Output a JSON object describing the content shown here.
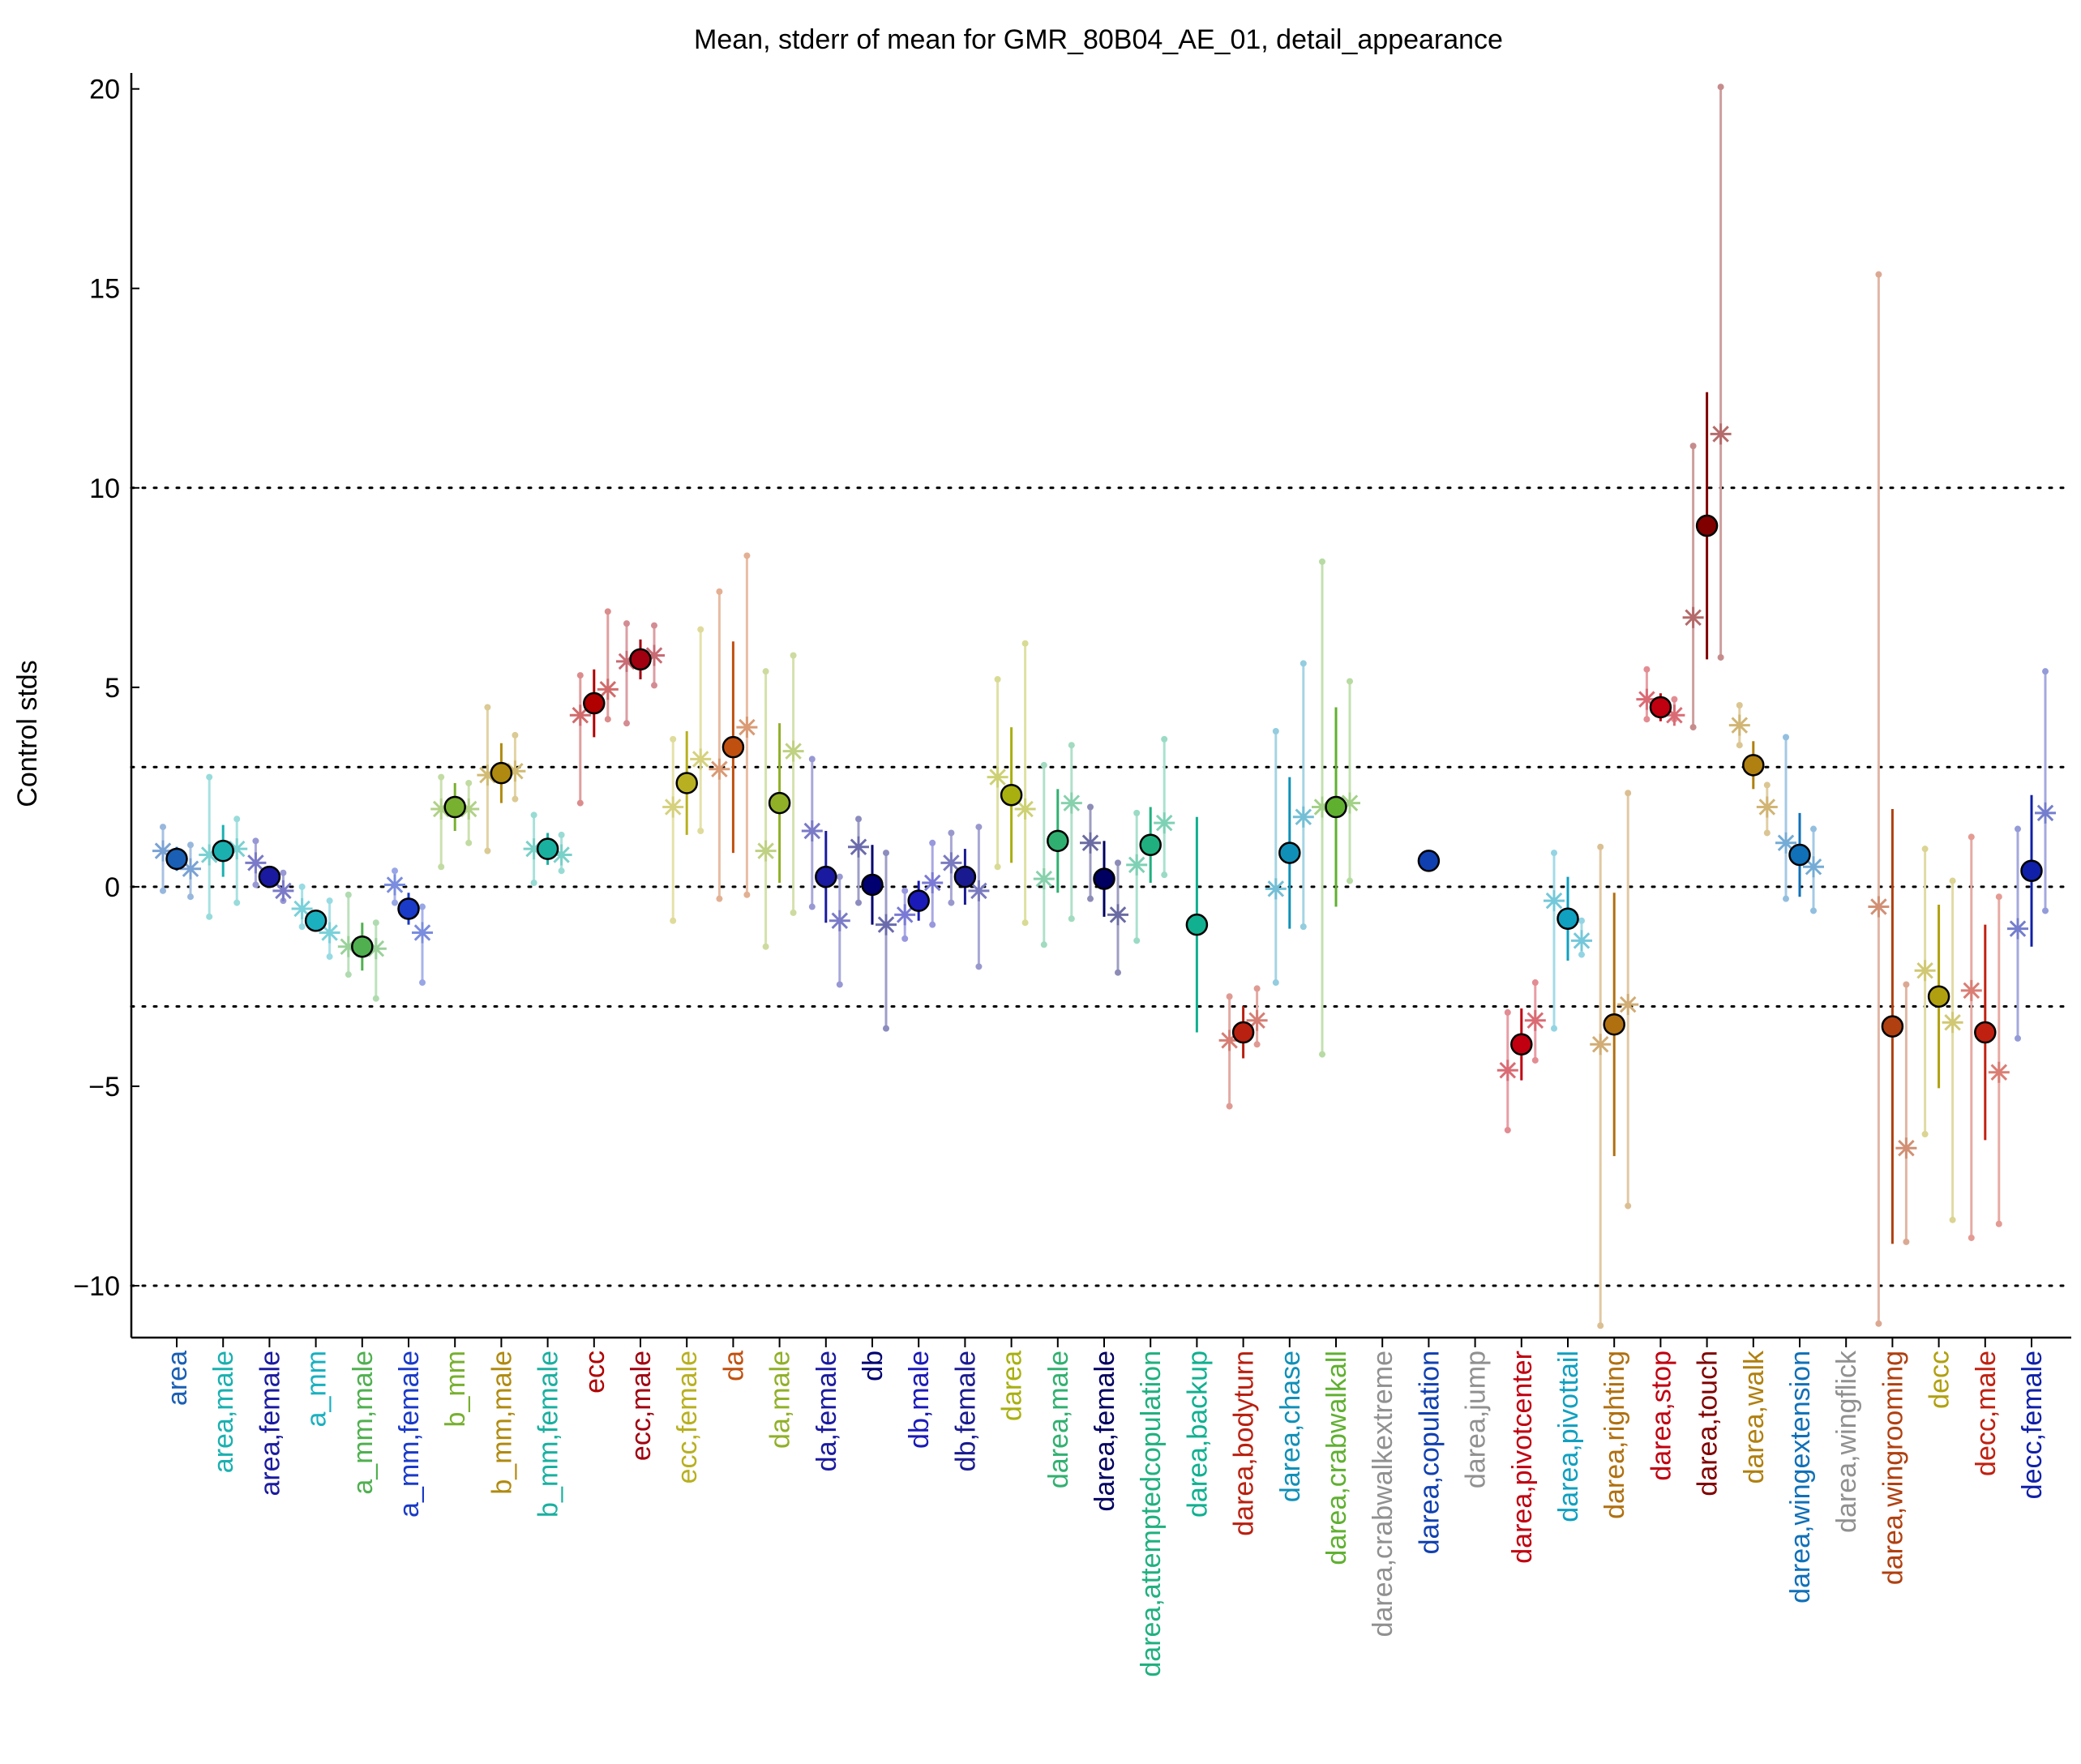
{
  "chart_data": {
    "type": "scatter",
    "title": "Mean, stderr of mean for GMR_80B04_AE_01, detail_appearance",
    "ylabel": "Control stds",
    "xlabel": "",
    "ylim": [
      -11.3,
      20.4
    ],
    "yticks": [
      -10,
      -5,
      0,
      5,
      10,
      15,
      20
    ],
    "ytick_labels": [
      "−10",
      "−5",
      "0",
      "5",
      "10",
      "15",
      "20"
    ],
    "reference_lines": [
      -10,
      -3,
      0,
      3,
      10
    ],
    "grid": false,
    "categories": [
      "area",
      "area,male",
      "area,female",
      "a_mm",
      "a_mm,male",
      "a_mm,female",
      "b_mm",
      "b_mm,male",
      "b_mm,female",
      "ecc",
      "ecc,male",
      "ecc,female",
      "da",
      "da,male",
      "da,female",
      "db",
      "db,male",
      "db,female",
      "darea",
      "darea,male",
      "darea,female",
      "darea,attemptedcopulation",
      "darea,backup",
      "darea,bodyturn",
      "darea,chase",
      "darea,crabwalkall",
      "darea,crabwalkextreme",
      "darea,copulation",
      "darea,jump",
      "darea,pivotcenter",
      "darea,pivottail",
      "darea,righting",
      "darea,stop",
      "darea,touch",
      "darea,walk",
      "darea,wingextension",
      "darea,wingflick",
      "darea,wingrooming",
      "decc",
      "decc,male",
      "decc,female"
    ],
    "category_colors": [
      "#1a5fb4",
      "#1ab0b0",
      "#1a1aa0",
      "#1ab0c0",
      "#50b050",
      "#1a3ac8",
      "#78b030",
      "#b08a10",
      "#1ab0a0",
      "#b00000",
      "#a00010",
      "#b8b020",
      "#c05010",
      "#90b028",
      "#1a1aa0",
      "#000070",
      "#1a1ab8",
      "#1a1a90",
      "#a8b010",
      "#30b070",
      "#000060",
      "#20b080",
      "#10b090",
      "#b82010",
      "#1090b8",
      "#60b030",
      "#909090",
      "#1040b0",
      "#909090",
      "#c00010",
      "#10a0c0",
      "#b07010",
      "#c00010",
      "#800000",
      "#b08010",
      "#1070b8",
      "#909090",
      "#b04010",
      "#b0a010",
      "#c02010",
      "#1020a8"
    ],
    "series": [
      {
        "name": "",
        "mean": [
          0.7,
          0.9,
          0.25,
          -0.85,
          -1.5,
          -0.55,
          2.0,
          2.85,
          0.95,
          4.6,
          5.7,
          2.6,
          3.5,
          2.1,
          0.25,
          0.05,
          -0.35,
          0.25,
          2.3,
          1.15,
          0.2,
          1.05,
          -0.95,
          -3.65,
          0.85,
          2.0,
          null,
          0.65,
          null,
          -3.95,
          -0.8,
          -3.45,
          4.5,
          9.05,
          3.05,
          0.8,
          null,
          -3.5,
          -2.75,
          -3.65,
          0.4
        ],
        "stderr": [
          0.3,
          0.65,
          0.2,
          0.2,
          0.6,
          0.4,
          0.6,
          0.75,
          0.4,
          0.85,
          0.5,
          1.3,
          2.65,
          2.0,
          1.15,
          1.0,
          0.5,
          0.7,
          1.7,
          1.3,
          0.95,
          0.95,
          2.7,
          0.65,
          1.9,
          2.5,
          null,
          0.12,
          null,
          0.9,
          1.05,
          3.3,
          0.35,
          3.35,
          0.6,
          1.05,
          null,
          5.45,
          2.3,
          2.7,
          1.9
        ]
      },
      {
        "name": "",
        "values": [
          [
            0.9,
            0.45
          ],
          [
            0.8,
            0.95
          ],
          [
            0.6,
            -0.1
          ],
          [
            -0.55,
            -1.15
          ],
          [
            -1.5,
            -1.55
          ],
          [
            0.05,
            -1.15
          ],
          [
            1.95,
            1.95
          ],
          [
            2.8,
            2.9
          ],
          [
            0.95,
            0.8
          ],
          [
            4.3,
            4.95
          ],
          [
            5.65,
            5.8
          ],
          [
            2.0,
            3.2
          ],
          [
            2.95,
            4.0
          ],
          [
            0.9,
            3.4
          ],
          [
            1.4,
            -0.85
          ],
          [
            1.0,
            -0.95
          ],
          [
            -0.7,
            0.1
          ],
          [
            0.6,
            -0.1
          ],
          [
            2.75,
            1.95
          ],
          [
            0.2,
            2.1
          ],
          [
            1.1,
            -0.7
          ],
          [
            0.55,
            1.6
          ],
          [
            null,
            null
          ],
          [
            -3.85,
            -3.35
          ],
          [
            -0.05,
            1.75
          ],
          [
            2.0,
            2.1
          ],
          [
            null,
            null
          ],
          [
            null,
            null
          ],
          [
            null,
            null
          ],
          [
            -4.6,
            -3.35
          ],
          [
            -0.35,
            -1.35
          ],
          [
            -3.95,
            -2.95
          ],
          [
            4.7,
            4.3
          ],
          [
            6.75,
            11.35
          ],
          [
            4.05,
            2.0
          ],
          [
            1.1,
            0.5
          ],
          [
            null,
            null
          ],
          [
            -0.5,
            -6.55
          ],
          [
            -2.1,
            -3.4
          ],
          [
            -2.6,
            -4.65
          ],
          [
            -1.05,
            1.85
          ]
        ],
        "ranges": [
          [
            [
              -0.1,
              1.5
            ],
            [
              -0.25,
              1.05
            ]
          ],
          [
            [
              -0.75,
              2.75
            ],
            [
              -0.4,
              1.7
            ]
          ],
          [
            [
              0.05,
              1.15
            ],
            [
              -0.35,
              0.35
            ]
          ],
          [
            [
              -1.0,
              0.0
            ],
            [
              -1.75,
              -0.35
            ]
          ],
          [
            [
              -2.2,
              -0.2
            ],
            [
              -2.8,
              -0.9
            ]
          ],
          [
            [
              -0.4,
              0.4
            ],
            [
              -2.4,
              -0.5
            ]
          ],
          [
            [
              0.5,
              2.75
            ],
            [
              1.1,
              2.6
            ]
          ],
          [
            [
              0.9,
              4.5
            ],
            [
              2.2,
              3.8
            ]
          ],
          [
            [
              0.1,
              1.8
            ],
            [
              0.4,
              1.3
            ]
          ],
          [
            [
              2.1,
              5.3
            ],
            [
              4.2,
              6.9
            ]
          ],
          [
            [
              4.1,
              6.6
            ],
            [
              5.05,
              6.55
            ]
          ],
          [
            [
              -0.85,
              3.7
            ],
            [
              1.4,
              6.45
            ]
          ],
          [
            [
              -0.3,
              7.4
            ],
            [
              -0.2,
              8.3
            ]
          ],
          [
            [
              -1.5,
              5.4
            ],
            [
              -0.65,
              5.8
            ]
          ],
          [
            [
              -0.5,
              3.2
            ],
            [
              -2.45,
              0.25
            ]
          ],
          [
            [
              -0.4,
              1.7
            ],
            [
              -3.55,
              0.85
            ]
          ],
          [
            [
              -1.3,
              -0.1
            ],
            [
              -0.95,
              1.1
            ]
          ],
          [
            [
              -0.4,
              1.35
            ],
            [
              -2.0,
              1.5
            ]
          ],
          [
            [
              0.5,
              5.2
            ],
            [
              -0.9,
              6.1
            ]
          ],
          [
            [
              -1.45,
              3.05
            ],
            [
              -0.8,
              3.55
            ]
          ],
          [
            [
              -0.3,
              2.0
            ],
            [
              -2.15,
              0.6
            ]
          ],
          [
            [
              -1.35,
              1.85
            ],
            [
              0.3,
              3.7
            ]
          ],
          [
            [
              null,
              null
            ],
            [
              null,
              null
            ]
          ],
          [
            [
              -5.5,
              -2.75
            ],
            [
              -3.95,
              -2.55
            ]
          ],
          [
            [
              -2.4,
              3.9
            ],
            [
              -1.0,
              5.6
            ]
          ],
          [
            [
              -4.2,
              8.15
            ],
            [
              0.15,
              5.15
            ]
          ],
          [
            [
              null,
              null
            ],
            [
              null,
              null
            ]
          ],
          [
            [
              null,
              null
            ],
            [
              null,
              null
            ]
          ],
          [
            [
              null,
              null
            ],
            [
              null,
              null
            ]
          ],
          [
            [
              -6.1,
              -3.15
            ],
            [
              -4.35,
              -2.4
            ]
          ],
          [
            [
              -3.55,
              0.85
            ],
            [
              -1.7,
              -0.85
            ]
          ],
          [
            [
              -11.0,
              1.0
            ],
            [
              -8.0,
              2.35
            ]
          ],
          [
            [
              4.2,
              5.45
            ],
            [
              4.2,
              4.7
            ]
          ],
          [
            [
              4.0,
              11.05
            ],
            [
              5.75,
              20.05
            ]
          ],
          [
            [
              3.55,
              4.55
            ],
            [
              1.35,
              2.55
            ]
          ],
          [
            [
              -0.3,
              3.75
            ],
            [
              -0.6,
              1.45
            ]
          ],
          [
            [
              null,
              null
            ],
            [
              null,
              null
            ]
          ],
          [
            [
              -10.95,
              15.35
            ],
            [
              -8.9,
              -2.45
            ]
          ],
          [
            [
              -6.2,
              0.95
            ],
            [
              -8.35,
              0.15
            ]
          ],
          [
            [
              -8.8,
              1.25
            ],
            [
              -8.45,
              -0.25
            ]
          ],
          [
            [
              -3.8,
              1.45
            ],
            [
              -0.6,
              5.4
            ]
          ]
        ]
      }
    ]
  }
}
